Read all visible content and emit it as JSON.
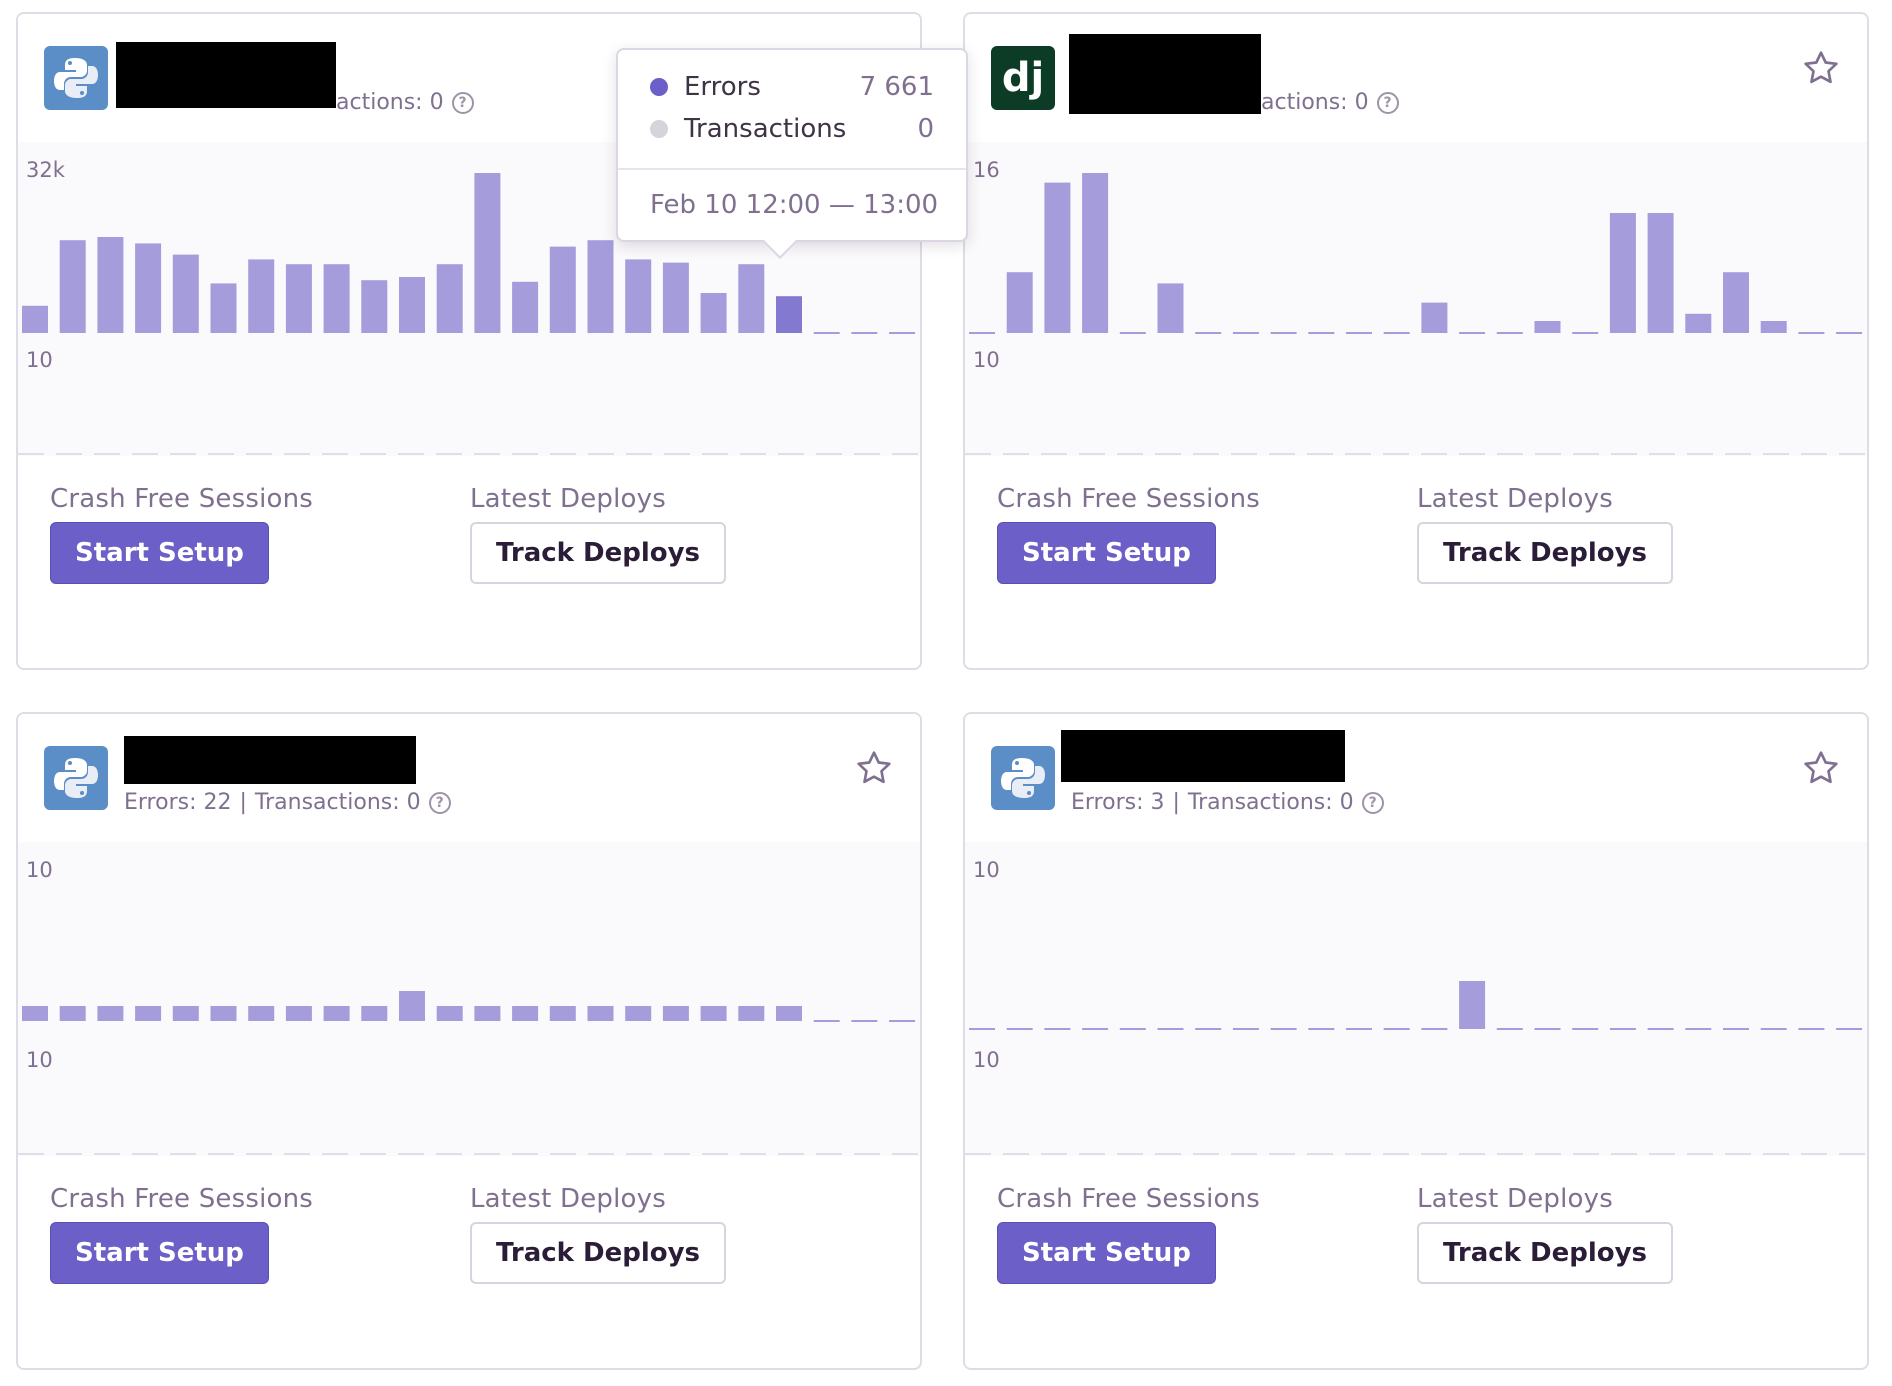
{
  "colors": {
    "accent": "#6c5fc7",
    "bar": "#a59ddb",
    "bar_active": "#8479d0",
    "transactions_dot": "#d6d3da",
    "muted_text": "#80708f"
  },
  "help_icon_glyph": "?",
  "cards": [
    {
      "platform": "python",
      "platform_icon": "python-icon",
      "stats": {
        "text": "actions: 0"
      },
      "chart_top_label": "32k",
      "chart_bottom_label": "10",
      "crash_free_title": "Crash Free Sessions",
      "start_setup_label": "Start Setup",
      "latest_deploys_title": "Latest Deploys",
      "track_deploys_label": "Track Deploys",
      "has_star": false
    },
    {
      "platform": "django",
      "platform_icon": "django-icon",
      "platform_glyph": "dj",
      "stats": {
        "text": "actions: 0"
      },
      "chart_top_label": "16",
      "chart_bottom_label": "10",
      "crash_free_title": "Crash Free Sessions",
      "start_setup_label": "Start Setup",
      "latest_deploys_title": "Latest Deploys",
      "track_deploys_label": "Track Deploys",
      "has_star": true
    },
    {
      "platform": "python",
      "platform_icon": "python-icon",
      "stats": {
        "errors": "Errors: 22",
        "separator": "|",
        "transactions": "Transactions: 0"
      },
      "chart_top_label": "10",
      "chart_bottom_label": "10",
      "crash_free_title": "Crash Free Sessions",
      "start_setup_label": "Start Setup",
      "latest_deploys_title": "Latest Deploys",
      "track_deploys_label": "Track Deploys",
      "has_star": true
    },
    {
      "platform": "python",
      "platform_icon": "python-icon",
      "stats": {
        "errors": "Errors: 3",
        "separator": "|",
        "transactions": "Transactions: 0"
      },
      "chart_top_label": "10",
      "chart_bottom_label": "10",
      "crash_free_title": "Crash Free Sessions",
      "start_setup_label": "Start Setup",
      "latest_deploys_title": "Latest Deploys",
      "track_deploys_label": "Track Deploys",
      "has_star": true
    }
  ],
  "tooltip": {
    "errors_label": "Errors",
    "errors_value": "7 661",
    "transactions_label": "Transactions",
    "transactions_value": "0",
    "time_range": "Feb 10 12:00 — 13:00"
  },
  "chart_data": [
    {
      "type": "bar",
      "series": [
        {
          "values": [
            0.17,
            0.58,
            0.6,
            0.56,
            0.49,
            0.31,
            0.46,
            0.43,
            0.43,
            0.33,
            0.35,
            0.43,
            1.0,
            0.32,
            0.54,
            0.58,
            0.46,
            0.44,
            0.25,
            0.43,
            0.23,
            0,
            0,
            0
          ]
        }
      ],
      "active_index": 20
    },
    {
      "type": "bar",
      "series": [
        {
          "values": [
            0,
            0.38,
            0.94,
            1.0,
            0,
            0.31,
            0,
            0,
            0,
            0,
            0,
            0,
            0.19,
            0,
            0,
            0.06,
            0,
            0.75,
            0.75,
            0.12,
            0.38,
            0.06,
            0,
            0,
            0
          ]
        }
      ]
    },
    {
      "type": "bar",
      "series": [
        {
          "values": [
            0.05,
            0.05,
            0.05,
            0.05,
            0.05,
            0.05,
            0.05,
            0.05,
            0.05,
            0.05,
            0.1,
            0.05,
            0.05,
            0.05,
            0.05,
            0.05,
            0.05,
            0.05,
            0.05,
            0.05,
            0.05,
            0,
            0,
            0
          ]
        }
      ]
    },
    {
      "type": "bar",
      "series": [
        {
          "values": [
            0,
            0,
            0,
            0,
            0,
            0,
            0,
            0,
            0,
            0,
            0,
            0,
            0,
            0.15,
            0,
            0,
            0,
            0,
            0,
            0,
            0,
            0,
            0,
            0
          ]
        }
      ]
    }
  ]
}
